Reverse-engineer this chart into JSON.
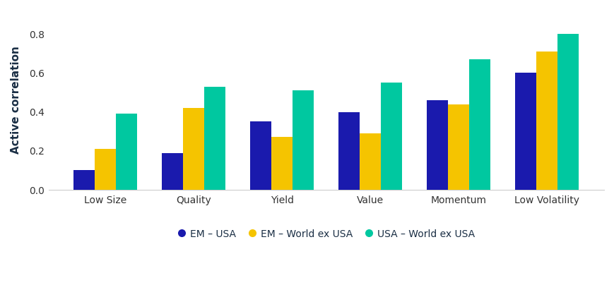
{
  "categories": [
    "Low Size",
    "Quality",
    "Yield",
    "Value",
    "Momentum",
    "Low Volatility"
  ],
  "series": [
    {
      "label": "EM – USA",
      "color": "#1a1aad",
      "values": [
        0.1,
        0.19,
        0.35,
        0.4,
        0.46,
        0.6
      ]
    },
    {
      "label": "EM – World ex USA",
      "color": "#f5c400",
      "values": [
        0.21,
        0.42,
        0.27,
        0.29,
        0.44,
        0.71
      ]
    },
    {
      "label": "USA – World ex USA",
      "color": "#00c8a0",
      "values": [
        0.39,
        0.53,
        0.51,
        0.55,
        0.67,
        0.8
      ]
    }
  ],
  "ylabel": "Active correlation",
  "ylim": [
    0.0,
    0.92
  ],
  "yticks": [
    0.0,
    0.2,
    0.4,
    0.6,
    0.8
  ],
  "background_color": "#ffffff",
  "bar_width": 0.24,
  "axis_fontsize": 11,
  "tick_fontsize": 10,
  "legend_fontsize": 10
}
